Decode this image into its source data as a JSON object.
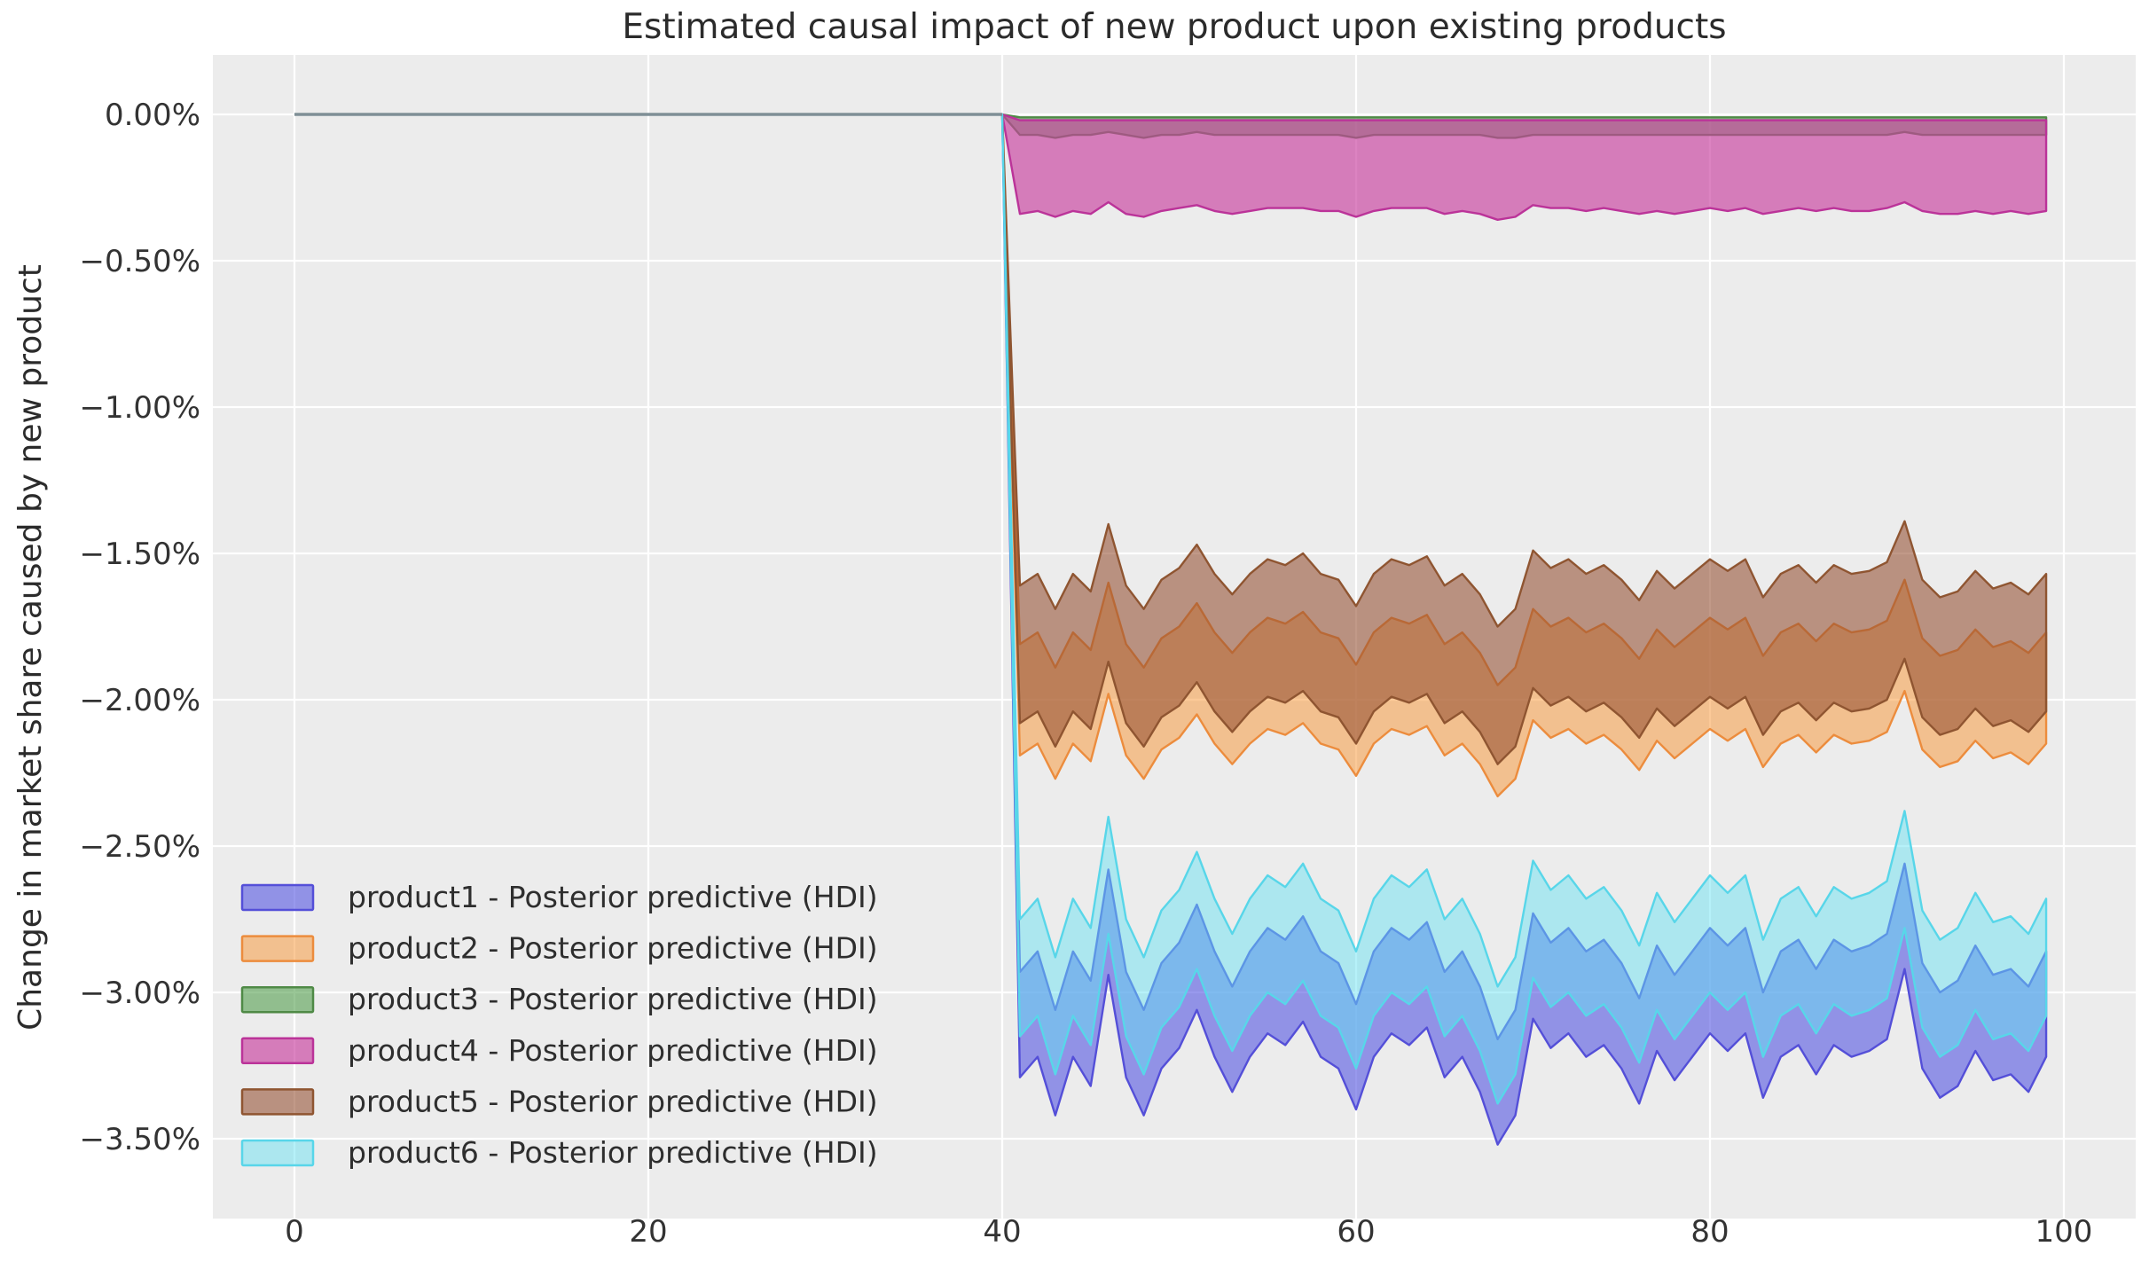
{
  "figure": {
    "background": "#ffffff",
    "plot_background": "#ececec",
    "grid_color": "#ffffff",
    "title_color": "#2b2b2b",
    "tick_color": "#333333",
    "legend_text_color": "#2e2e2e"
  },
  "chart_data": {
    "type": "area",
    "title": "Estimated causal impact of new product upon existing products",
    "xlabel": "",
    "ylabel": "Change in market share caused by new product",
    "xlim": [
      -5,
      105
    ],
    "ylim": [
      -3.74,
      0.22
    ],
    "grid": true,
    "legend_position": "lower left",
    "x_ticks": [
      0,
      20,
      40,
      60,
      80,
      100
    ],
    "y_ticks": [
      {
        "value": 0.0,
        "label": "0.00%"
      },
      {
        "value": -0.5,
        "label": "−0.50%"
      },
      {
        "value": -1.0,
        "label": "−1.00%"
      },
      {
        "value": -1.5,
        "label": "−1.50%"
      },
      {
        "value": -2.0,
        "label": "−2.00%"
      },
      {
        "value": -2.5,
        "label": "−2.50%"
      },
      {
        "value": -3.0,
        "label": "−3.00%"
      },
      {
        "value": -3.5,
        "label": "−3.50%"
      }
    ],
    "intervention_x": 40,
    "pre_period": {
      "x_start": 0,
      "x_end": 40,
      "value": 0,
      "line_color": "#7f8f96"
    },
    "x_post": [
      40,
      41,
      42,
      43,
      44,
      45,
      46,
      47,
      48,
      49,
      50,
      51,
      52,
      53,
      54,
      55,
      56,
      57,
      58,
      59,
      60,
      61,
      62,
      63,
      64,
      65,
      66,
      67,
      68,
      69,
      70,
      71,
      72,
      73,
      74,
      75,
      76,
      77,
      78,
      79,
      80,
      81,
      82,
      83,
      84,
      85,
      86,
      87,
      88,
      89,
      90,
      91,
      92,
      93,
      94,
      95,
      96,
      97,
      98,
      99
    ],
    "series": [
      {
        "name": "product1",
        "label": "product1 - Posterior predictive (HDI)",
        "fill": "rgba(88,90,226,0.62)",
        "edge": "#544fd8",
        "hi": [
          0,
          -2.93,
          -2.86,
          -3.06,
          -2.86,
          -2.96,
          -2.58,
          -2.93,
          -3.06,
          -2.9,
          -2.83,
          -2.7,
          -2.86,
          -2.98,
          -2.86,
          -2.78,
          -2.82,
          -2.74,
          -2.86,
          -2.9,
          -3.04,
          -2.86,
          -2.78,
          -2.82,
          -2.76,
          -2.93,
          -2.86,
          -2.98,
          -3.16,
          -3.06,
          -2.73,
          -2.83,
          -2.78,
          -2.86,
          -2.82,
          -2.9,
          -3.02,
          -2.84,
          -2.94,
          -2.86,
          -2.78,
          -2.84,
          -2.78,
          -3.0,
          -2.86,
          -2.82,
          -2.92,
          -2.82,
          -2.86,
          -2.84,
          -2.8,
          -2.56,
          -2.9,
          -3.0,
          -2.96,
          -2.84,
          -2.94,
          -2.92,
          -2.98,
          -2.86
        ],
        "lo": [
          0,
          -3.29,
          -3.22,
          -3.42,
          -3.22,
          -3.32,
          -2.94,
          -3.29,
          -3.42,
          -3.26,
          -3.19,
          -3.06,
          -3.22,
          -3.34,
          -3.22,
          -3.14,
          -3.18,
          -3.1,
          -3.22,
          -3.26,
          -3.4,
          -3.22,
          -3.14,
          -3.18,
          -3.12,
          -3.29,
          -3.22,
          -3.34,
          -3.52,
          -3.42,
          -3.09,
          -3.19,
          -3.14,
          -3.22,
          -3.18,
          -3.26,
          -3.38,
          -3.2,
          -3.3,
          -3.22,
          -3.14,
          -3.2,
          -3.14,
          -3.36,
          -3.22,
          -3.18,
          -3.28,
          -3.18,
          -3.22,
          -3.2,
          -3.16,
          -2.92,
          -3.26,
          -3.36,
          -3.32,
          -3.2,
          -3.3,
          -3.28,
          -3.34,
          -3.22
        ]
      },
      {
        "name": "product2",
        "label": "product2 - Posterior predictive (HDI)",
        "fill": "rgba(248,156,68,0.55)",
        "edge": "#ec8c3d",
        "hi": [
          0,
          -1.81,
          -1.77,
          -1.89,
          -1.77,
          -1.83,
          -1.6,
          -1.81,
          -1.89,
          -1.79,
          -1.75,
          -1.67,
          -1.77,
          -1.84,
          -1.77,
          -1.72,
          -1.74,
          -1.7,
          -1.77,
          -1.79,
          -1.88,
          -1.77,
          -1.72,
          -1.74,
          -1.71,
          -1.81,
          -1.77,
          -1.84,
          -1.95,
          -1.89,
          -1.69,
          -1.75,
          -1.72,
          -1.77,
          -1.74,
          -1.79,
          -1.86,
          -1.76,
          -1.82,
          -1.77,
          -1.72,
          -1.76,
          -1.72,
          -1.85,
          -1.77,
          -1.74,
          -1.8,
          -1.74,
          -1.77,
          -1.76,
          -1.73,
          -1.59,
          -1.79,
          -1.85,
          -1.83,
          -1.76,
          -1.82,
          -1.8,
          -1.84,
          -1.77
        ],
        "lo": [
          0,
          -2.19,
          -2.15,
          -2.27,
          -2.15,
          -2.21,
          -1.98,
          -2.19,
          -2.27,
          -2.17,
          -2.13,
          -2.05,
          -2.15,
          -2.22,
          -2.15,
          -2.1,
          -2.12,
          -2.08,
          -2.15,
          -2.17,
          -2.26,
          -2.15,
          -2.1,
          -2.12,
          -2.09,
          -2.19,
          -2.15,
          -2.22,
          -2.33,
          -2.27,
          -2.07,
          -2.13,
          -2.1,
          -2.15,
          -2.12,
          -2.17,
          -2.24,
          -2.14,
          -2.2,
          -2.15,
          -2.1,
          -2.14,
          -2.1,
          -2.23,
          -2.15,
          -2.12,
          -2.18,
          -2.12,
          -2.15,
          -2.14,
          -2.11,
          -1.97,
          -2.17,
          -2.23,
          -2.21,
          -2.14,
          -2.2,
          -2.18,
          -2.22,
          -2.15
        ]
      },
      {
        "name": "product3",
        "label": "product3 - Posterior predictive (HDI)",
        "fill": "rgba(85,160,80,0.6)",
        "edge": "#4f8a46",
        "hi": [
          0,
          -0.01,
          -0.01,
          -0.01,
          -0.01,
          -0.01,
          -0.01,
          -0.01,
          -0.01,
          -0.01,
          -0.01,
          -0.01,
          -0.01,
          -0.01,
          -0.01,
          -0.01,
          -0.01,
          -0.01,
          -0.01,
          -0.01,
          -0.01,
          -0.01,
          -0.01,
          -0.01,
          -0.01,
          -0.01,
          -0.01,
          -0.01,
          -0.01,
          -0.01,
          -0.01,
          -0.01,
          -0.01,
          -0.01,
          -0.01,
          -0.01,
          -0.01,
          -0.01,
          -0.01,
          -0.01,
          -0.01,
          -0.01,
          -0.01,
          -0.01,
          -0.01,
          -0.01,
          -0.01,
          -0.01,
          -0.01,
          -0.01,
          -0.01,
          -0.01,
          -0.01,
          -0.01,
          -0.01,
          -0.01,
          -0.01,
          -0.01,
          -0.01,
          -0.01
        ],
        "lo": [
          0,
          -0.07,
          -0.07,
          -0.08,
          -0.07,
          -0.07,
          -0.06,
          -0.07,
          -0.08,
          -0.07,
          -0.07,
          -0.06,
          -0.07,
          -0.07,
          -0.07,
          -0.07,
          -0.07,
          -0.07,
          -0.07,
          -0.07,
          -0.08,
          -0.07,
          -0.07,
          -0.07,
          -0.07,
          -0.07,
          -0.07,
          -0.07,
          -0.08,
          -0.08,
          -0.07,
          -0.07,
          -0.07,
          -0.07,
          -0.07,
          -0.07,
          -0.07,
          -0.07,
          -0.07,
          -0.07,
          -0.07,
          -0.07,
          -0.07,
          -0.07,
          -0.07,
          -0.07,
          -0.07,
          -0.07,
          -0.07,
          -0.07,
          -0.07,
          -0.06,
          -0.07,
          -0.07,
          -0.07,
          -0.07,
          -0.07,
          -0.07,
          -0.07,
          -0.07
        ]
      },
      {
        "name": "product4",
        "label": "product4 - Posterior predictive (HDI)",
        "fill": "rgba(201,64,160,0.65)",
        "edge": "#bb3399",
        "hi": [
          0,
          -0.02,
          -0.02,
          -0.02,
          -0.02,
          -0.02,
          -0.02,
          -0.02,
          -0.02,
          -0.02,
          -0.02,
          -0.02,
          -0.02,
          -0.02,
          -0.02,
          -0.02,
          -0.02,
          -0.02,
          -0.02,
          -0.02,
          -0.02,
          -0.02,
          -0.02,
          -0.02,
          -0.02,
          -0.02,
          -0.02,
          -0.02,
          -0.02,
          -0.02,
          -0.02,
          -0.02,
          -0.02,
          -0.02,
          -0.02,
          -0.02,
          -0.02,
          -0.02,
          -0.02,
          -0.02,
          -0.02,
          -0.02,
          -0.02,
          -0.02,
          -0.02,
          -0.02,
          -0.02,
          -0.02,
          -0.02,
          -0.02,
          -0.02,
          -0.02,
          -0.02,
          -0.02,
          -0.02,
          -0.02,
          -0.02,
          -0.02,
          -0.02,
          -0.02
        ],
        "lo": [
          0,
          -0.34,
          -0.33,
          -0.35,
          -0.33,
          -0.34,
          -0.3,
          -0.34,
          -0.35,
          -0.33,
          -0.32,
          -0.31,
          -0.33,
          -0.34,
          -0.33,
          -0.32,
          -0.32,
          -0.32,
          -0.33,
          -0.33,
          -0.35,
          -0.33,
          -0.32,
          -0.32,
          -0.32,
          -0.34,
          -0.33,
          -0.34,
          -0.36,
          -0.35,
          -0.31,
          -0.32,
          -0.32,
          -0.33,
          -0.32,
          -0.33,
          -0.34,
          -0.33,
          -0.34,
          -0.33,
          -0.32,
          -0.33,
          -0.32,
          -0.34,
          -0.33,
          -0.32,
          -0.33,
          -0.32,
          -0.33,
          -0.33,
          -0.32,
          -0.3,
          -0.33,
          -0.34,
          -0.34,
          -0.33,
          -0.34,
          -0.33,
          -0.34,
          -0.33
        ]
      },
      {
        "name": "product5",
        "label": "product5 - Posterior predictive (HDI)",
        "fill": "rgba(148,80,50,0.58)",
        "edge": "#8f5531",
        "hi": [
          0,
          -1.61,
          -1.57,
          -1.69,
          -1.57,
          -1.63,
          -1.4,
          -1.61,
          -1.69,
          -1.59,
          -1.55,
          -1.47,
          -1.57,
          -1.64,
          -1.57,
          -1.52,
          -1.54,
          -1.5,
          -1.57,
          -1.59,
          -1.68,
          -1.57,
          -1.52,
          -1.54,
          -1.51,
          -1.61,
          -1.57,
          -1.64,
          -1.75,
          -1.69,
          -1.49,
          -1.55,
          -1.52,
          -1.57,
          -1.54,
          -1.59,
          -1.66,
          -1.56,
          -1.62,
          -1.57,
          -1.52,
          -1.56,
          -1.52,
          -1.65,
          -1.57,
          -1.54,
          -1.6,
          -1.54,
          -1.57,
          -1.56,
          -1.53,
          -1.39,
          -1.59,
          -1.65,
          -1.63,
          -1.56,
          -1.62,
          -1.6,
          -1.64,
          -1.57
        ],
        "lo": [
          0,
          -2.08,
          -2.04,
          -2.16,
          -2.04,
          -2.1,
          -1.87,
          -2.08,
          -2.16,
          -2.06,
          -2.02,
          -1.94,
          -2.04,
          -2.11,
          -2.04,
          -1.99,
          -2.01,
          -1.97,
          -2.04,
          -2.06,
          -2.15,
          -2.04,
          -1.99,
          -2.01,
          -1.98,
          -2.08,
          -2.04,
          -2.11,
          -2.22,
          -2.16,
          -1.96,
          -2.02,
          -1.99,
          -2.04,
          -2.01,
          -2.06,
          -2.13,
          -2.03,
          -2.09,
          -2.04,
          -1.99,
          -2.03,
          -1.99,
          -2.12,
          -2.04,
          -2.01,
          -2.07,
          -2.01,
          -2.04,
          -2.03,
          -2.0,
          -1.86,
          -2.06,
          -2.12,
          -2.1,
          -2.03,
          -2.09,
          -2.07,
          -2.11,
          -2.04
        ]
      },
      {
        "name": "product6",
        "label": "product6 - Posterior predictive (HDI)",
        "fill": "rgba(103,225,242,0.48)",
        "edge": "#58d6e9",
        "hi": [
          0,
          -2.75,
          -2.68,
          -2.88,
          -2.68,
          -2.78,
          -2.4,
          -2.75,
          -2.88,
          -2.72,
          -2.65,
          -2.52,
          -2.68,
          -2.8,
          -2.68,
          -2.6,
          -2.64,
          -2.56,
          -2.68,
          -2.72,
          -2.86,
          -2.68,
          -2.6,
          -2.64,
          -2.58,
          -2.75,
          -2.68,
          -2.8,
          -2.98,
          -2.88,
          -2.55,
          -2.65,
          -2.6,
          -2.68,
          -2.64,
          -2.72,
          -2.84,
          -2.66,
          -2.76,
          -2.68,
          -2.6,
          -2.66,
          -2.6,
          -2.82,
          -2.68,
          -2.64,
          -2.74,
          -2.64,
          -2.68,
          -2.66,
          -2.62,
          -2.38,
          -2.72,
          -2.82,
          -2.78,
          -2.66,
          -2.76,
          -2.74,
          -2.8,
          -2.68
        ],
        "lo": [
          0,
          -3.15,
          -3.08,
          -3.28,
          -3.08,
          -3.18,
          -2.8,
          -3.15,
          -3.28,
          -3.12,
          -3.05,
          -2.92,
          -3.08,
          -3.2,
          -3.08,
          -3.0,
          -3.04,
          -2.96,
          -3.08,
          -3.12,
          -3.26,
          -3.08,
          -3.0,
          -3.04,
          -2.98,
          -3.15,
          -3.08,
          -3.2,
          -3.38,
          -3.28,
          -2.95,
          -3.05,
          -3.0,
          -3.08,
          -3.04,
          -3.12,
          -3.24,
          -3.06,
          -3.16,
          -3.08,
          -3.0,
          -3.06,
          -3.0,
          -3.22,
          -3.08,
          -3.04,
          -3.14,
          -3.04,
          -3.08,
          -3.06,
          -3.02,
          -2.78,
          -3.12,
          -3.22,
          -3.18,
          -3.06,
          -3.16,
          -3.14,
          -3.2,
          -3.08
        ]
      }
    ]
  }
}
